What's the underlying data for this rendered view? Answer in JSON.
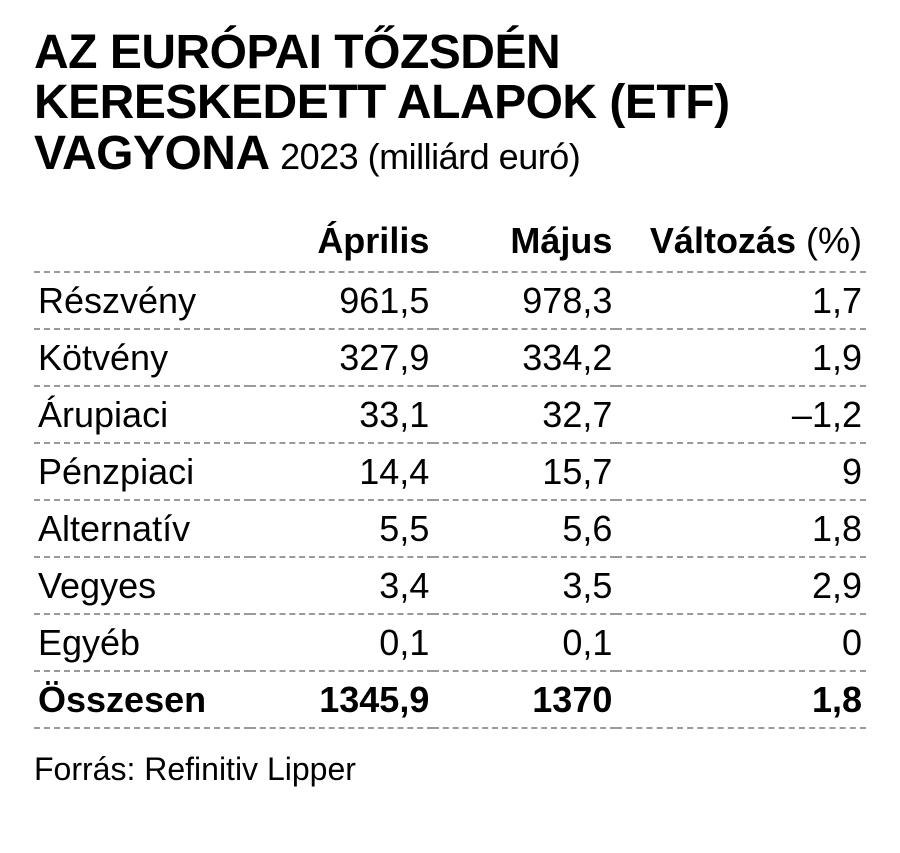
{
  "title": {
    "main": "AZ EURÓPAI TŐZSDÉN KERESKEDETT ALAPOK (ETF) VAGYONA",
    "sub": "2023 (milliárd euró)"
  },
  "table": {
    "type": "table",
    "columns": {
      "label": "",
      "april": "Április",
      "may": "Május",
      "change": "Változás",
      "change_unit": "(%)"
    },
    "rows": [
      {
        "label": "Részvény",
        "april": "961,5",
        "may": "978,3",
        "change": "1,7"
      },
      {
        "label": "Kötvény",
        "april": "327,9",
        "may": "334,2",
        "change": "1,9"
      },
      {
        "label": "Árupiaci",
        "april": "33,1",
        "may": "32,7",
        "change": "–1,2"
      },
      {
        "label": "Pénzpiaci",
        "april": "14,4",
        "may": "15,7",
        "change": "9"
      },
      {
        "label": "Alternatív",
        "april": "5,5",
        "may": "5,6",
        "change": "1,8"
      },
      {
        "label": "Vegyes",
        "april": "3,4",
        "may": "3,5",
        "change": "2,9"
      },
      {
        "label": "Egyéb",
        "april": "0,1",
        "may": "0,1",
        "change": "0"
      }
    ],
    "total": {
      "label": "Összesen",
      "april": "1345,9",
      "may": "1370",
      "change": "1,8"
    },
    "colors": {
      "text": "#000000",
      "background": "#ffffff",
      "row_divider": "#9a9a9a"
    },
    "fonts": {
      "title_main_pt": 48,
      "title_sub_pt": 36,
      "cell_pt": 36,
      "source_pt": 32,
      "family": "condensed sans-serif"
    }
  },
  "source": "Forrás: Refinitiv Lipper"
}
